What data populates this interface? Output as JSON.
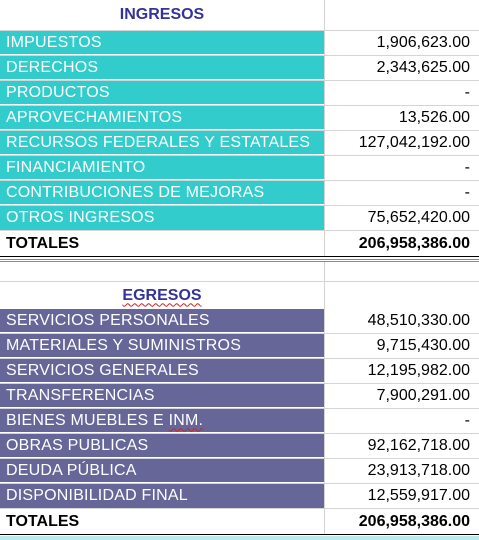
{
  "ingresos": {
    "title": "INGRESOS",
    "rows": [
      {
        "label": "IMPUESTOS",
        "value": "1,906,623.00"
      },
      {
        "label": "DERECHOS",
        "value": "2,343,625.00"
      },
      {
        "label": "PRODUCTOS",
        "value": "-"
      },
      {
        "label": "APROVECHAMIENTOS",
        "value": "13,526.00"
      },
      {
        "label": "RECURSOS FEDERALES Y ESTATALES",
        "value": "127,042,192.00"
      },
      {
        "label": "FINANCIAMIENTO",
        "value": "-"
      },
      {
        "label": "CONTRIBUCIONES DE MEJORAS",
        "value": "-"
      },
      {
        "label": "OTROS INGRESOS",
        "value": "75,652,420.00"
      }
    ],
    "total_label": "TOTALES",
    "total_value": "206,958,386.00"
  },
  "egresos": {
    "title": "EGRESOS",
    "rows": [
      {
        "label": "SERVICIOS PERSONALES",
        "value": "48,510,330.00"
      },
      {
        "label": "MATERIALES Y SUMINISTROS",
        "value": "9,715,430.00"
      },
      {
        "label": "SERVICIOS GENERALES",
        "value": "12,195,982.00"
      },
      {
        "label": "TRANSFERENCIAS",
        "value": "7,900,291.00"
      },
      {
        "label": "BIENES MUEBLES E ",
        "label_marked": "INM.",
        "value": "-"
      },
      {
        "label": "OBRAS PUBLICAS",
        "value": "92,162,718.00"
      },
      {
        "label": "DEUDA PÚBLICA",
        "value": "23,913,718.00"
      },
      {
        "label": "DISPONIBILIDAD FINAL",
        "value": "12,559,917.00"
      }
    ],
    "total_label": "TOTALES",
    "total_value": "206,958,386.00"
  },
  "colors": {
    "ingresos_fill": "#33cccc",
    "egresos_fill": "#666699",
    "header_text": "#333399",
    "gridline": "#d4d4d4"
  }
}
